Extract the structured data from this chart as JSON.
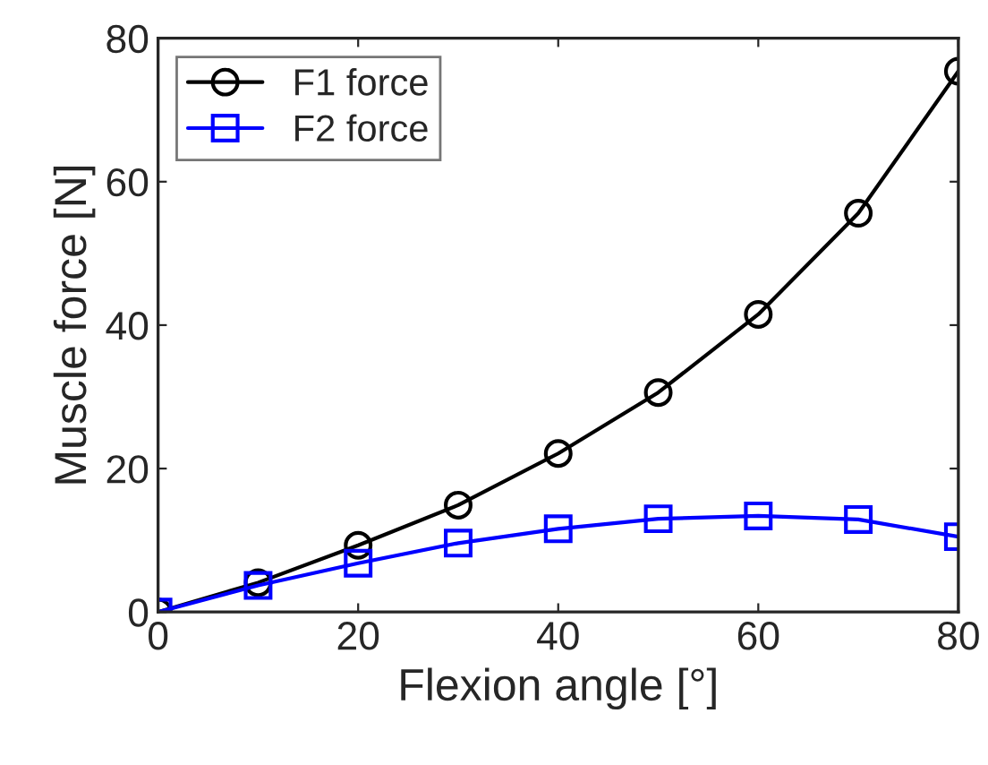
{
  "chart_data": {
    "type": "line",
    "xlabel": "Flexion angle [°]",
    "ylabel": "Muscle force [N]",
    "x": [
      0,
      10,
      20,
      30,
      40,
      50,
      60,
      70,
      80
    ],
    "series": [
      {
        "name": "F1 force",
        "color": "#000000",
        "marker": "circle",
        "values": [
          0,
          4.1,
          9.3,
          14.9,
          22.1,
          30.6,
          41.5,
          55.6,
          75.4
        ]
      },
      {
        "name": "F2 force",
        "color": "#0000ff",
        "marker": "square",
        "values": [
          0,
          3.7,
          6.8,
          9.6,
          11.6,
          13.0,
          13.4,
          12.9,
          10.5
        ]
      }
    ],
    "xlim": [
      0,
      80
    ],
    "xticks": [
      0,
      20,
      40,
      60,
      80
    ],
    "ylim": [
      0,
      80
    ],
    "yticks": [
      0,
      20,
      40,
      60,
      80
    ],
    "grid": false,
    "legend": "top left",
    "line_style": "solid"
  }
}
